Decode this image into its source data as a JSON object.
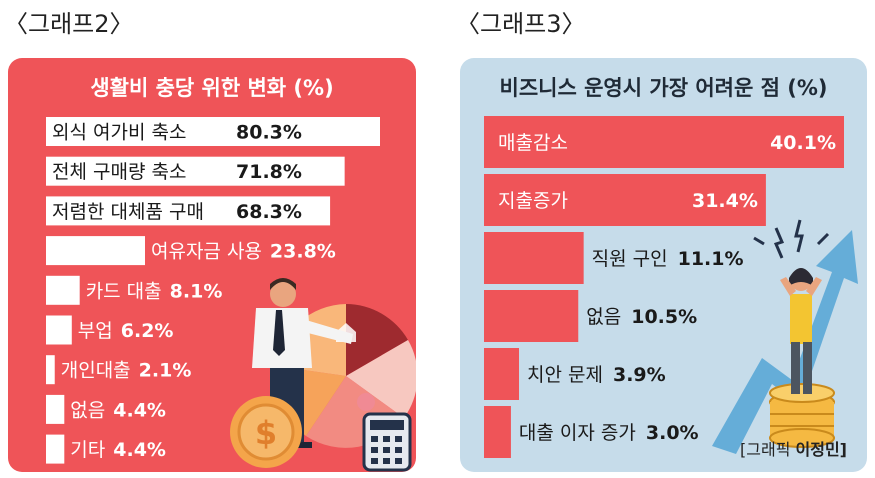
{
  "headers": {
    "left": "〈그래프2〉",
    "right": "〈그래프3〉"
  },
  "colors": {
    "left_panel": "#ef5458",
    "right_panel": "#c6dcea",
    "bar_white": "#ffffff",
    "bar_red": "#ef5458",
    "arrow": "#5aa7d6",
    "coin": "#f5b942"
  },
  "credit": {
    "prefix": "[그래픽 ",
    "name": "이정민]"
  },
  "chart_data": [
    {
      "type": "bar",
      "orientation": "horizontal",
      "title": "생활비 충당 위한 변화 (%)",
      "unit": "%",
      "categories": [
        "외식 여가비 축소",
        "전체 구매량 축소",
        "저렴한 대체품 구매",
        "여유자금 사용",
        "카드 대출",
        "부업",
        "개인대출",
        "없음",
        "기타"
      ],
      "values": [
        80.3,
        71.8,
        68.3,
        23.8,
        8.1,
        6.2,
        2.1,
        4.4,
        4.4
      ],
      "value_labels": [
        "80.3%",
        "71.8%",
        "68.3%",
        "23.8%",
        "8.1%",
        "6.2%",
        "2.1%",
        "4.4%",
        "4.4%"
      ]
    },
    {
      "type": "bar",
      "orientation": "horizontal",
      "title": "비즈니스 운영시 가장 어려운 점 (%)",
      "unit": "%",
      "categories": [
        "매출감소",
        "지출증가",
        "직원 구인",
        "없음",
        "치안 문제",
        "대출 이자 증가"
      ],
      "values": [
        40.1,
        31.4,
        11.1,
        10.5,
        3.9,
        3.0
      ],
      "value_labels": [
        "40.1%",
        "31.4%",
        "11.1%",
        "10.5%",
        "3.9%",
        "3.0%"
      ]
    }
  ]
}
